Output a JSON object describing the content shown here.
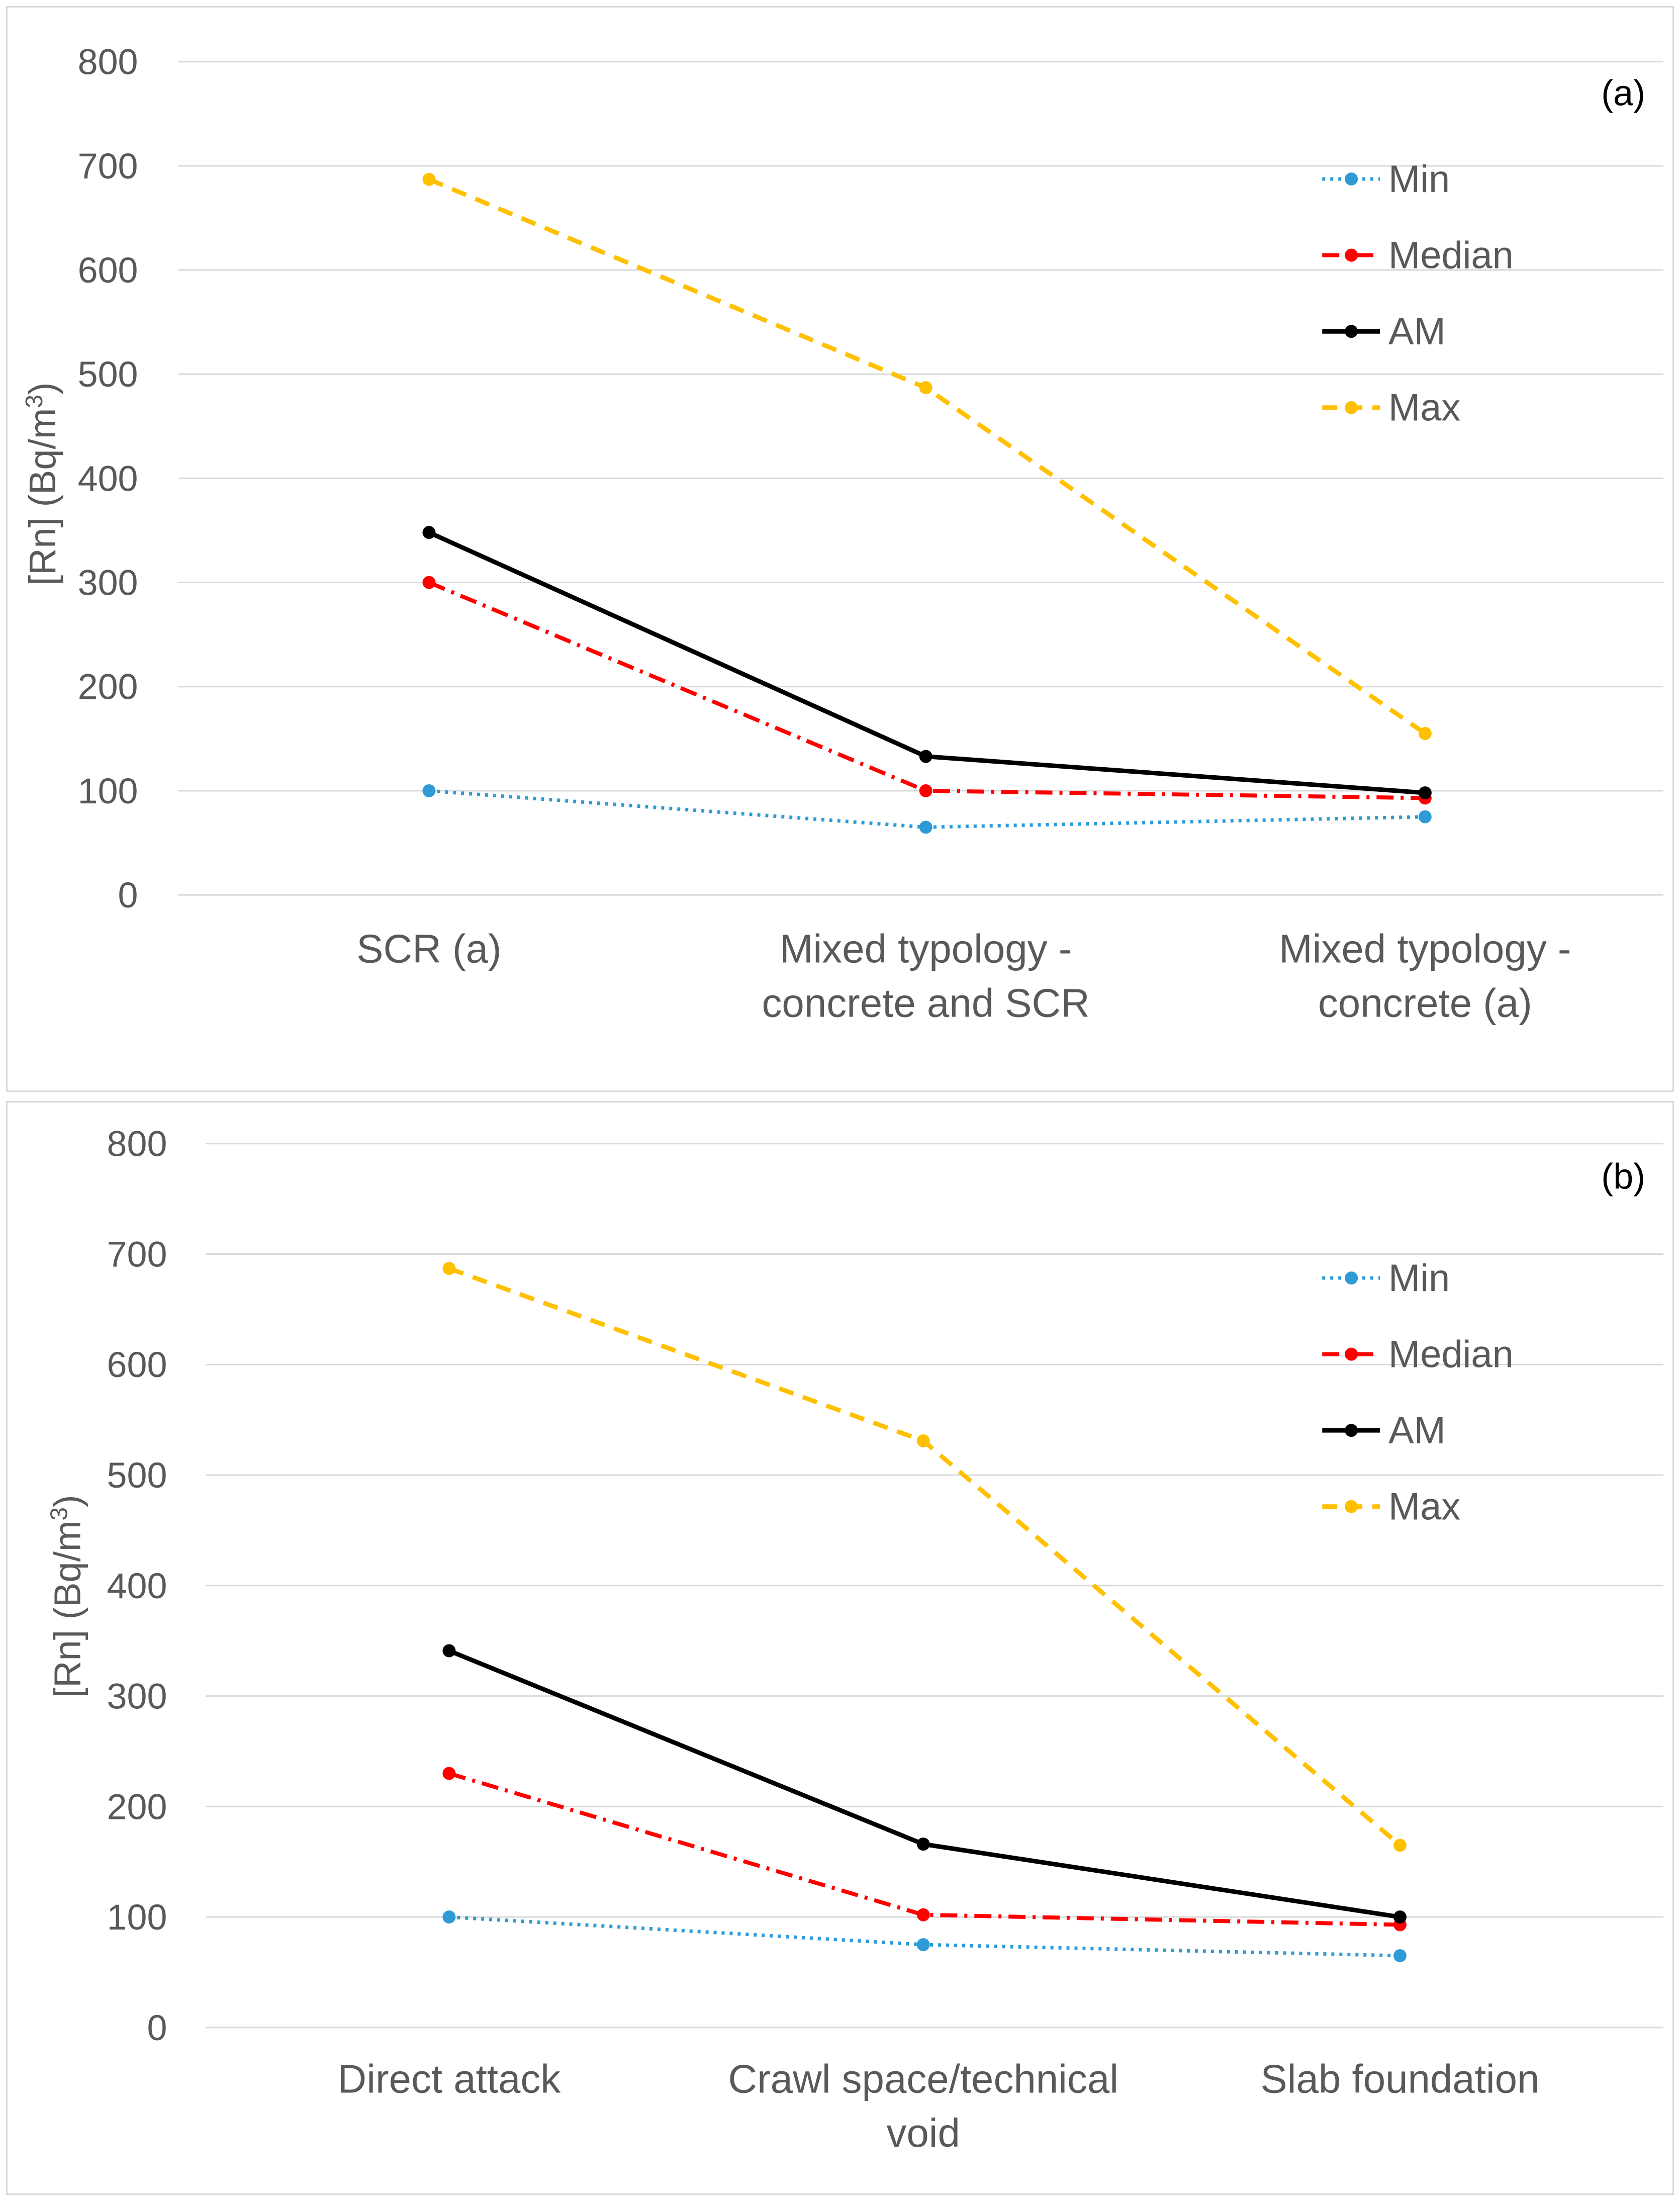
{
  "chart_data": [
    {
      "type": "line",
      "panel_label": "(a)",
      "ylabel": "[Rn] (Bq/m3)",
      "ylabel_prefix": "[Rn] (Bq/m",
      "ylabel_sup": "3",
      "ylabel_suffix": ")",
      "ylim": [
        0,
        800
      ],
      "yticks": [
        0,
        100,
        200,
        300,
        400,
        500,
        600,
        700,
        800
      ],
      "grid": true,
      "legend_position": "top-right",
      "categories": [
        [
          "SCR (a)"
        ],
        [
          "Mixed typology -",
          "concrete and SCR"
        ],
        [
          "Mixed typology -",
          "concrete (a)"
        ]
      ],
      "series": [
        {
          "name": "Min",
          "values": [
            100,
            65,
            75
          ],
          "color": "#2E9BD6",
          "style": "dotted"
        },
        {
          "name": "Median",
          "values": [
            300,
            100,
            93
          ],
          "color": "#FF0000",
          "style": "dashdot"
        },
        {
          "name": "AM",
          "values": [
            348,
            133,
            98
          ],
          "color": "#000000",
          "style": "solid"
        },
        {
          "name": "Max",
          "values": [
            687,
            487,
            155
          ],
          "color": "#FFC000",
          "style": "dashed"
        }
      ]
    },
    {
      "type": "line",
      "panel_label": "(b)",
      "ylabel": "[Rn] (Bq/m3)",
      "ylabel_prefix": "[Rn] (Bq/m",
      "ylabel_sup": "3",
      "ylabel_suffix": ")",
      "ylim": [
        0,
        800
      ],
      "yticks": [
        0,
        100,
        200,
        300,
        400,
        500,
        600,
        700,
        800
      ],
      "grid": true,
      "legend_position": "top-right",
      "categories": [
        [
          "Direct attack"
        ],
        [
          "Crawl space/technical",
          "void"
        ],
        [
          "Slab foundation"
        ]
      ],
      "series": [
        {
          "name": "Min",
          "values": [
            100,
            75,
            65
          ],
          "color": "#2E9BD6",
          "style": "dotted"
        },
        {
          "name": "Median",
          "values": [
            230,
            102,
            93
          ],
          "color": "#FF0000",
          "style": "dashdot"
        },
        {
          "name": "AM",
          "values": [
            341,
            166,
            100
          ],
          "color": "#000000",
          "style": "solid"
        },
        {
          "name": "Max",
          "values": [
            687,
            531,
            165
          ],
          "color": "#FFC000",
          "style": "dashed"
        }
      ]
    }
  ]
}
